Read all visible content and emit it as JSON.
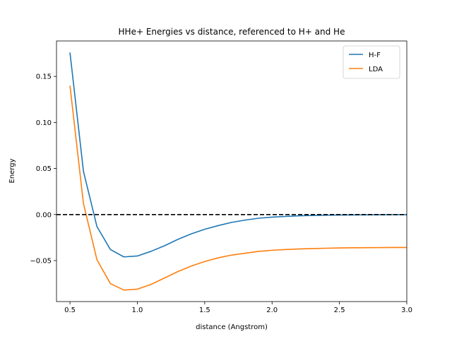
{
  "chart_data": {
    "type": "line",
    "title": "HHe+ Energies vs distance, referenced to H+ and He",
    "xlabel": "distance (Angstrom)",
    "ylabel": "Energy",
    "xlim": [
      0.4,
      3.0
    ],
    "ylim": [
      -0.0945,
      0.1885
    ],
    "xticks": [
      0.5,
      1.0,
      1.5,
      2.0,
      2.5,
      3.0
    ],
    "xtick_labels": [
      "0.5",
      "1.0",
      "1.5",
      "2.0",
      "2.5",
      "3.0"
    ],
    "yticks": [
      -0.05,
      0.0,
      0.05,
      0.1,
      0.15
    ],
    "ytick_labels": [
      "−0.05",
      "0.00",
      "0.05",
      "0.10",
      "0.15"
    ],
    "grid": false,
    "legend_position": "top-right",
    "reference_line": {
      "y": 0.0,
      "style": "dashed",
      "color": "#000000"
    },
    "x": [
      0.5,
      0.6,
      0.7,
      0.8,
      0.9,
      1.0,
      1.1,
      1.2,
      1.3,
      1.4,
      1.5,
      1.6,
      1.7,
      1.8,
      1.9,
      2.0,
      2.1,
      2.2,
      2.3,
      2.4,
      2.5,
      2.6,
      2.7,
      2.8,
      2.9,
      3.0
    ],
    "series": [
      {
        "name": "H-F",
        "color": "#1f77b4",
        "values": [
          0.176,
          0.047,
          -0.013,
          -0.038,
          -0.046,
          -0.045,
          -0.04,
          -0.034,
          -0.027,
          -0.021,
          -0.016,
          -0.012,
          -0.0085,
          -0.006,
          -0.004,
          -0.0028,
          -0.002,
          -0.0014,
          -0.001,
          -0.0007,
          -0.0005,
          -0.0004,
          -0.0003,
          -0.0002,
          -0.0001,
          -0.0001
        ]
      },
      {
        "name": "LDA",
        "color": "#ff7f0e",
        "values": [
          0.14,
          0.012,
          -0.049,
          -0.075,
          -0.082,
          -0.081,
          -0.076,
          -0.069,
          -0.062,
          -0.056,
          -0.051,
          -0.047,
          -0.044,
          -0.042,
          -0.04,
          -0.0388,
          -0.038,
          -0.0374,
          -0.0369,
          -0.0366,
          -0.0363,
          -0.0361,
          -0.036,
          -0.0359,
          -0.0358,
          -0.0358
        ]
      }
    ]
  }
}
